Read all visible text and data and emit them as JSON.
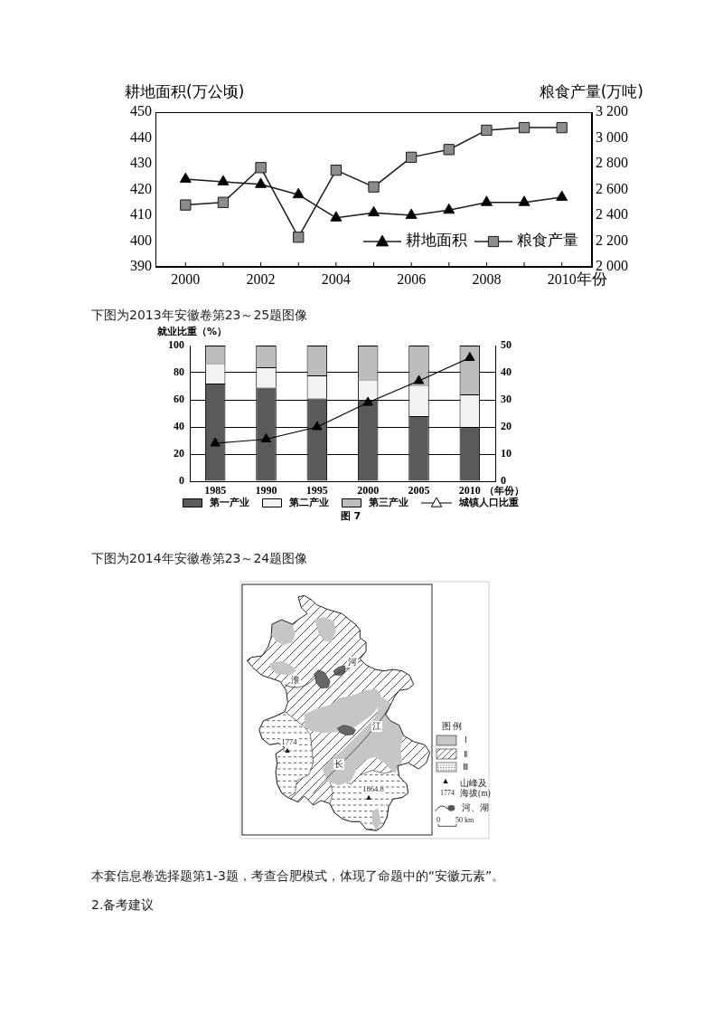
{
  "chart_data": [
    {
      "type": "line",
      "ylabel": "耕地面积(万公顷)",
      "y2label": "粮食产量(万吨)",
      "xlabel": "年份",
      "x": [
        2000,
        2001,
        2002,
        2003,
        2004,
        2005,
        2006,
        2007,
        2008,
        2009,
        2010
      ],
      "xlim": [
        1999.2,
        2010.8
      ],
      "xticks": [
        2000,
        {
          "value": 2001,
          "label": null
        },
        2002,
        {
          "value": 2003,
          "label": null
        },
        2004,
        {
          "value": 2005,
          "label": null
        },
        2006,
        {
          "value": 2007,
          "label": null
        },
        2008,
        {
          "value": 2009,
          "label": null
        },
        2010
      ],
      "ylim": [
        390,
        450
      ],
      "yticks": [
        390,
        400,
        410,
        420,
        430,
        440,
        450
      ],
      "y2lim": [
        2000,
        3200
      ],
      "y2ticks": [
        {
          "value": 2000,
          "label": "2 000"
        },
        {
          "value": 2200,
          "label": "2 200"
        },
        {
          "value": 2400,
          "label": "2 400"
        },
        {
          "value": 2600,
          "label": "2 600"
        },
        {
          "value": 2800,
          "label": "2 800"
        },
        {
          "value": 3000,
          "label": "3 000"
        },
        {
          "value": 3200,
          "label": "3 200"
        }
      ],
      "legend": "bottom right",
      "series": [
        {
          "name": "耕地面积",
          "color": "#000000",
          "marker": "triangle",
          "values": [
            424,
            423,
            422,
            418,
            409,
            411,
            410,
            412,
            415,
            415,
            417
          ]
        },
        {
          "name": "粮食产量",
          "color": "#8c8c8c",
          "marker": "square",
          "axis": "y2",
          "values": [
            2480,
            2500,
            2770,
            2230,
            2750,
            2620,
            2850,
            2910,
            3060,
            3080,
            3080
          ]
        }
      ]
    },
    {
      "type": "bar",
      "title": "下图为2013年安徽卷第23～25题图像",
      "ylabel": "就业比重（%）",
      "xlabel": "（年份）",
      "categories": [
        "1985",
        "1990",
        "1995",
        "2000",
        "2005",
        "2010"
      ],
      "stacked": true,
      "ylim": [
        0,
        100
      ],
      "yticks": [
        0,
        20,
        40,
        60,
        80,
        100
      ],
      "y2lim": [
        0,
        50
      ],
      "y2ticks": [
        0,
        10,
        20,
        30,
        40,
        50
      ],
      "grid": "y",
      "legend": "bottom",
      "series": [
        {
          "name": "第一产业",
          "color": "#5a5a5a",
          "values": [
            72,
            69,
            61,
            60,
            48,
            40
          ]
        },
        {
          "name": "第二产业",
          "color": "#f2f2f2",
          "values": [
            15,
            15,
            17,
            15,
            23,
            24
          ]
        },
        {
          "name": "第三产业",
          "color": "#bdbdbd",
          "values": [
            13,
            16,
            22,
            25,
            29,
            36
          ]
        },
        {
          "name": "城镇人口比重",
          "type": "line",
          "axis": "y2",
          "color": "#000000",
          "marker": "triangle",
          "values": [
            14,
            15.5,
            20,
            29,
            37,
            45.5
          ]
        }
      ],
      "annotations": [
        "图 7"
      ]
    },
    {
      "type": "other",
      "title": "下图为2014年安徽卷第23～24题图像",
      "annotations": [
        "淮",
        "河",
        "江",
        "长",
        "1774",
        "1864.8",
        "图 例",
        "Ⅰ",
        "Ⅱ",
        "Ⅲ",
        "1774",
        "山峰及海拔(m)",
        "河、湖",
        "0",
        "50 km",
        "本套信息卷选择题第1-3题，考查合肥模式，体现了命题中的“安徽元素”。",
        "2.备考建议"
      ]
    }
  ]
}
